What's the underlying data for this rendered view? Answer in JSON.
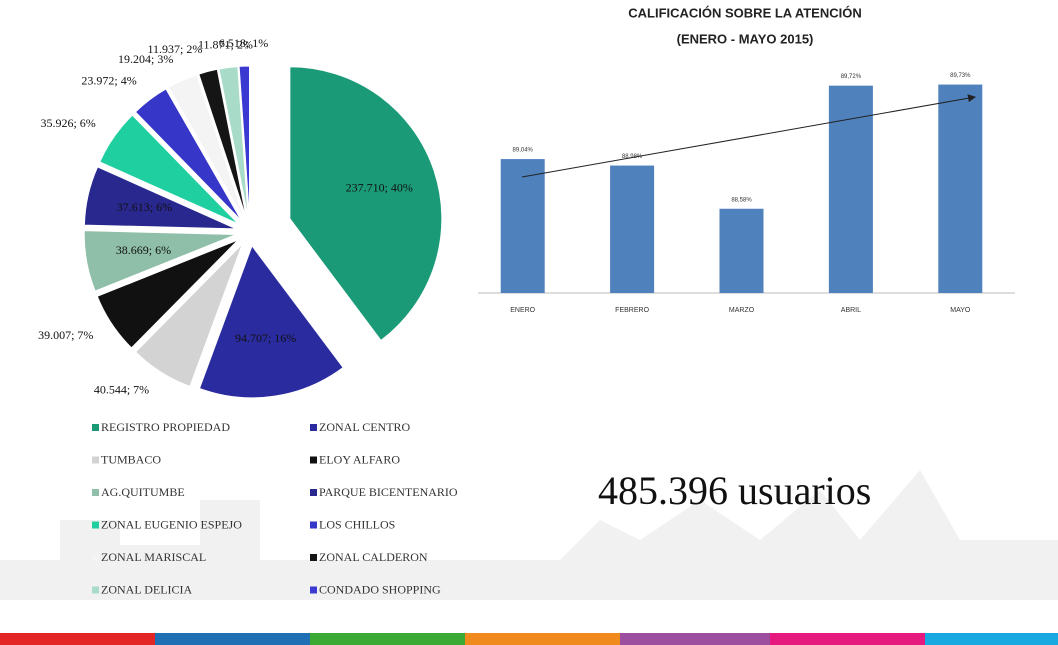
{
  "chart_data": [
    {
      "type": "pie",
      "categories": [
        "REGISTRO PROPIEDAD",
        "ZONAL CENTRO",
        "TUMBACO",
        "ELOY ALFARO",
        "AG.QUITUMBE",
        "PARQUE BICENTENARIO",
        "ZONAL EUGENIO ESPEJO",
        "LOS CHILLOS",
        "ZONAL MARISCAL",
        "ZONAL CALDERON",
        "ZONAL DELICIA",
        "CONDADO SHOPPING"
      ],
      "values": [
        237710,
        94707,
        40544,
        39007,
        38669,
        37613,
        35926,
        23972,
        19204,
        11937,
        11871,
        6518
      ],
      "value_labels": [
        "237.710; 40%",
        "94.707; 16%",
        "40.544; 7%",
        "39.007; 7%",
        "38.669; 6%",
        "37.613; 6%",
        "35.926; 6%",
        "23.972; 4%",
        "19.204; 3%",
        "11.937; 2%",
        "11.871; 2%",
        "6.518; 1%"
      ],
      "colors": [
        "#1b9a78",
        "#2b2ba0",
        "#d3d3d3",
        "#111111",
        "#8fbfa8",
        "#28288f",
        "#1fcf9f",
        "#3636c8",
        "#f4f4f4",
        "#151515",
        "#a9dcc8",
        "#3a3ad2"
      ]
    },
    {
      "type": "bar",
      "title": "CALIFICACIÓN SOBRE LA ATENCIÓN",
      "subtitle": "(ENERO - MAYO 2015)",
      "categories": [
        "ENERO",
        "FEBRERO",
        "MARZO",
        "ABRIL",
        "MAYO"
      ],
      "values": [
        89.04,
        88.98,
        88.58,
        89.72,
        89.73
      ],
      "value_labels": [
        "89,04%",
        "88,98%",
        "88,58%",
        "89,72%",
        "89,73%"
      ],
      "color": "#4f81bd",
      "ylim": [
        87.8,
        89.8
      ]
    }
  ],
  "note": "485.396 usuarios"
}
